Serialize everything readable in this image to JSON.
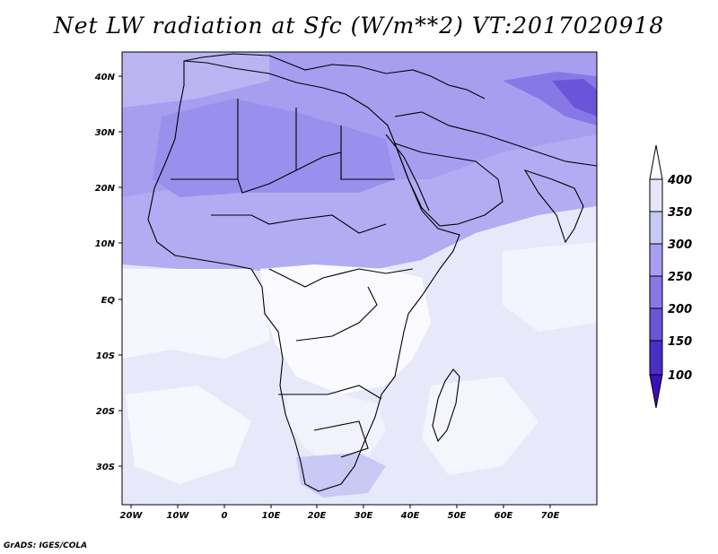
{
  "title": "Net LW radiation at Sfc (W/m**2) VT:2017020918",
  "credit": "GrADS: IGES/COLA",
  "x_ticks": [
    "20W",
    "10W",
    "0",
    "10E",
    "20E",
    "30E",
    "40E",
    "50E",
    "60E",
    "70E"
  ],
  "y_ticks": [
    "40N",
    "30N",
    "20N",
    "10N",
    "EQ",
    "10S",
    "20S",
    "30S"
  ],
  "colorbar": {
    "levels": [
      "400",
      "350",
      "300",
      "250",
      "200",
      "150",
      "100"
    ],
    "colors": [
      "#ffffff",
      "#e6e6fb",
      "#c9c9f5",
      "#a89ef0",
      "#8878e6",
      "#6a55d9",
      "#4a2ec8",
      "#3a10b8"
    ]
  }
}
